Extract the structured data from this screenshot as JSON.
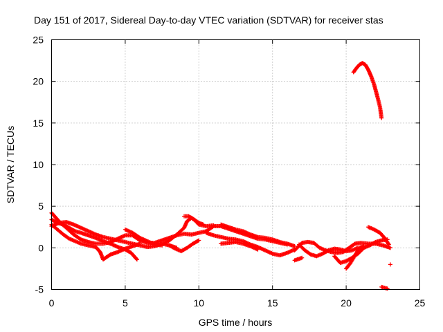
{
  "chart_data": {
    "type": "scatter",
    "title": "Day 151 of 2017, Sidereal Day-to-day VTEC variation (SDTVAR) for receiver stas",
    "xlabel": "GPS time / hours",
    "ylabel": "SDTVAR / TECUs",
    "xlim": [
      0,
      25
    ],
    "ylim": [
      -5,
      25
    ],
    "xticks": [
      "0",
      "5",
      "10",
      "15",
      "20",
      "25"
    ],
    "yticks": [
      "-5",
      "0",
      "5",
      "10",
      "15",
      "20",
      "25"
    ],
    "grid": true,
    "marker": "+",
    "series": [
      {
        "name": "SDTVAR",
        "color": "#ff0000",
        "tracks": [
          [
            [
              0.0,
              4.2
            ],
            [
              0.3,
              3.6
            ],
            [
              0.6,
              3.0
            ],
            [
              1.0,
              2.4
            ],
            [
              1.5,
              1.6
            ],
            [
              2.0,
              1.0
            ],
            [
              2.5,
              0.7
            ],
            [
              3.0,
              0.5
            ],
            [
              3.5,
              0.5
            ],
            [
              4.0,
              0.7
            ],
            [
              4.5,
              1.1
            ],
            [
              5.0,
              1.5
            ],
            [
              5.5,
              1.5
            ],
            [
              6.0,
              0.9
            ],
            [
              6.5,
              0.6
            ],
            [
              7.0,
              0.6
            ],
            [
              7.5,
              0.9
            ],
            [
              8.0,
              1.2
            ],
            [
              8.5,
              1.5
            ],
            [
              9.0,
              1.7
            ],
            [
              9.5,
              1.6
            ],
            [
              10.0,
              1.8
            ],
            [
              10.5,
              2.0
            ],
            [
              11.0,
              2.6
            ],
            [
              11.5,
              2.6
            ],
            [
              12.0,
              2.3
            ],
            [
              12.5,
              2.0
            ],
            [
              13.0,
              1.7
            ],
            [
              13.5,
              1.4
            ],
            [
              14.0,
              1.1
            ],
            [
              14.5,
              1.0
            ],
            [
              15.0,
              0.8
            ],
            [
              15.5,
              0.6
            ],
            [
              16.0,
              0.4
            ]
          ],
          [
            [
              0.0,
              3.4
            ],
            [
              0.4,
              3.0
            ],
            [
              0.8,
              2.8
            ],
            [
              1.2,
              2.4
            ],
            [
              1.6,
              2.0
            ],
            [
              2.0,
              1.8
            ],
            [
              2.5,
              1.5
            ],
            [
              3.0,
              1.2
            ],
            [
              3.5,
              0.8
            ],
            [
              4.0,
              0.5
            ],
            [
              4.5,
              0.1
            ],
            [
              5.0,
              -0.2
            ],
            [
              5.4,
              -0.6
            ],
            [
              5.8,
              -1.4
            ]
          ],
          [
            [
              0.0,
              2.8
            ],
            [
              0.4,
              2.2
            ],
            [
              0.8,
              1.6
            ],
            [
              1.2,
              1.1
            ],
            [
              1.6,
              0.8
            ],
            [
              2.0,
              0.5
            ],
            [
              2.5,
              0.3
            ],
            [
              3.0,
              0.1
            ],
            [
              3.3,
              -0.5
            ],
            [
              3.5,
              -1.4
            ],
            [
              4.0,
              -0.8
            ],
            [
              4.5,
              -0.5
            ],
            [
              5.0,
              -0.1
            ],
            [
              5.5,
              0.2
            ],
            [
              6.0,
              0.5
            ]
          ],
          [
            [
              0.0,
              2.6
            ],
            [
              0.5,
              3.0
            ],
            [
              1.0,
              3.1
            ],
            [
              1.5,
              2.8
            ],
            [
              2.0,
              2.4
            ],
            [
              2.5,
              2.0
            ],
            [
              3.0,
              1.6
            ],
            [
              3.5,
              1.3
            ],
            [
              4.0,
              1.1
            ],
            [
              4.5,
              0.9
            ],
            [
              5.0,
              0.7
            ],
            [
              5.5,
              0.5
            ],
            [
              6.0,
              0.3
            ],
            [
              6.5,
              0.1
            ],
            [
              7.0,
              0.2
            ],
            [
              7.5,
              0.5
            ],
            [
              8.0,
              0.3
            ],
            [
              8.5,
              0.0
            ]
          ],
          [
            [
              5.0,
              2.2
            ],
            [
              5.5,
              1.8
            ],
            [
              6.0,
              1.2
            ],
            [
              6.5,
              0.8
            ],
            [
              7.0,
              0.4
            ],
            [
              7.5,
              0.3
            ]
          ],
          [
            [
              7.5,
              0.4
            ],
            [
              8.0,
              0.9
            ],
            [
              8.5,
              1.6
            ],
            [
              9.0,
              2.4
            ],
            [
              9.2,
              3.2
            ],
            [
              9.5,
              3.6
            ],
            [
              9.8,
              3.2
            ],
            [
              10.0,
              2.8
            ],
            [
              10.5,
              2.6
            ],
            [
              11.0,
              2.7
            ]
          ],
          [
            [
              9.0,
              3.8
            ],
            [
              9.3,
              3.8
            ],
            [
              9.6,
              3.5
            ],
            [
              10.0,
              3.0
            ],
            [
              10.3,
              2.8
            ]
          ],
          [
            [
              8.0,
              0.3
            ],
            [
              8.4,
              -0.1
            ],
            [
              8.8,
              -0.4
            ],
            [
              9.2,
              0.0
            ],
            [
              9.6,
              0.5
            ],
            [
              10.0,
              0.9
            ]
          ],
          [
            [
              10.5,
              1.8
            ],
            [
              11.0,
              1.5
            ],
            [
              11.5,
              1.3
            ],
            [
              12.0,
              1.1
            ],
            [
              12.5,
              1.0
            ],
            [
              13.0,
              0.8
            ],
            [
              13.5,
              0.4
            ],
            [
              14.0,
              0.1
            ],
            [
              14.5,
              -0.3
            ],
            [
              15.0,
              -0.7
            ],
            [
              15.5,
              -0.9
            ],
            [
              16.0,
              -0.6
            ],
            [
              16.5,
              -0.2
            ]
          ],
          [
            [
              11.5,
              2.8
            ],
            [
              12.0,
              2.5
            ],
            [
              12.5,
              2.2
            ],
            [
              13.0,
              2.0
            ],
            [
              13.5,
              1.6
            ],
            [
              14.0,
              1.3
            ],
            [
              14.5,
              1.2
            ],
            [
              15.0,
              1.0
            ],
            [
              15.5,
              0.7
            ],
            [
              16.0,
              0.5
            ],
            [
              16.5,
              0.2
            ]
          ],
          [
            [
              11.5,
              0.5
            ],
            [
              12.0,
              0.6
            ],
            [
              12.5,
              0.7
            ],
            [
              13.0,
              0.5
            ],
            [
              13.5,
              0.2
            ],
            [
              14.0,
              -0.2
            ]
          ],
          [
            [
              16.5,
              -0.3
            ],
            [
              17.0,
              0.6
            ],
            [
              17.4,
              0.7
            ],
            [
              17.8,
              0.6
            ],
            [
              18.2,
              0.0
            ],
            [
              18.6,
              -0.3
            ],
            [
              19.0,
              -0.5
            ],
            [
              19.4,
              -0.6
            ],
            [
              19.8,
              -0.5
            ],
            [
              20.2,
              0.0
            ],
            [
              20.6,
              0.5
            ],
            [
              21.0,
              0.6
            ],
            [
              21.5,
              0.5
            ],
            [
              22.0,
              0.5
            ],
            [
              22.5,
              0.3
            ],
            [
              23.0,
              0.0
            ]
          ],
          [
            [
              16.8,
              0.4
            ],
            [
              17.2,
              -0.3
            ],
            [
              17.6,
              -0.8
            ],
            [
              18.0,
              -1.0
            ],
            [
              18.4,
              -0.7
            ],
            [
              18.8,
              -0.3
            ],
            [
              19.2,
              -0.1
            ],
            [
              19.6,
              -0.2
            ],
            [
              20.0,
              -0.4
            ],
            [
              20.4,
              -0.3
            ],
            [
              20.8,
              0.0
            ]
          ],
          [
            [
              19.2,
              -1.0
            ],
            [
              19.6,
              -1.8
            ],
            [
              20.0,
              -1.6
            ],
            [
              20.4,
              -1.2
            ],
            [
              20.8,
              -0.7
            ],
            [
              21.2,
              0.0
            ],
            [
              21.6,
              0.3
            ],
            [
              22.0,
              0.7
            ],
            [
              22.4,
              0.9
            ],
            [
              22.8,
              1.0
            ]
          ],
          [
            [
              20.0,
              -2.5
            ],
            [
              20.3,
              -1.8
            ],
            [
              20.6,
              -0.9
            ],
            [
              20.9,
              0.0
            ],
            [
              21.2,
              0.2
            ]
          ],
          [
            [
              21.5,
              2.5
            ],
            [
              21.9,
              2.2
            ],
            [
              22.3,
              1.8
            ],
            [
              22.6,
              1.2
            ],
            [
              22.9,
              0.4
            ]
          ],
          [
            [
              20.5,
              21.1
            ],
            [
              20.7,
              21.6
            ],
            [
              20.9,
              22.0
            ],
            [
              21.1,
              22.2
            ],
            [
              21.3,
              22.0
            ],
            [
              21.5,
              21.4
            ],
            [
              21.7,
              20.6
            ],
            [
              21.9,
              19.6
            ],
            [
              22.1,
              18.3
            ],
            [
              22.3,
              16.9
            ],
            [
              22.4,
              15.6
            ]
          ],
          [
            [
              22.4,
              -4.7
            ],
            [
              22.6,
              -4.8
            ],
            [
              22.8,
              -4.9
            ]
          ],
          [
            [
              23.0,
              -2.0
            ]
          ],
          [
            [
              16.5,
              -1.5
            ],
            [
              17.0,
              -1.2
            ]
          ]
        ]
      }
    ]
  }
}
